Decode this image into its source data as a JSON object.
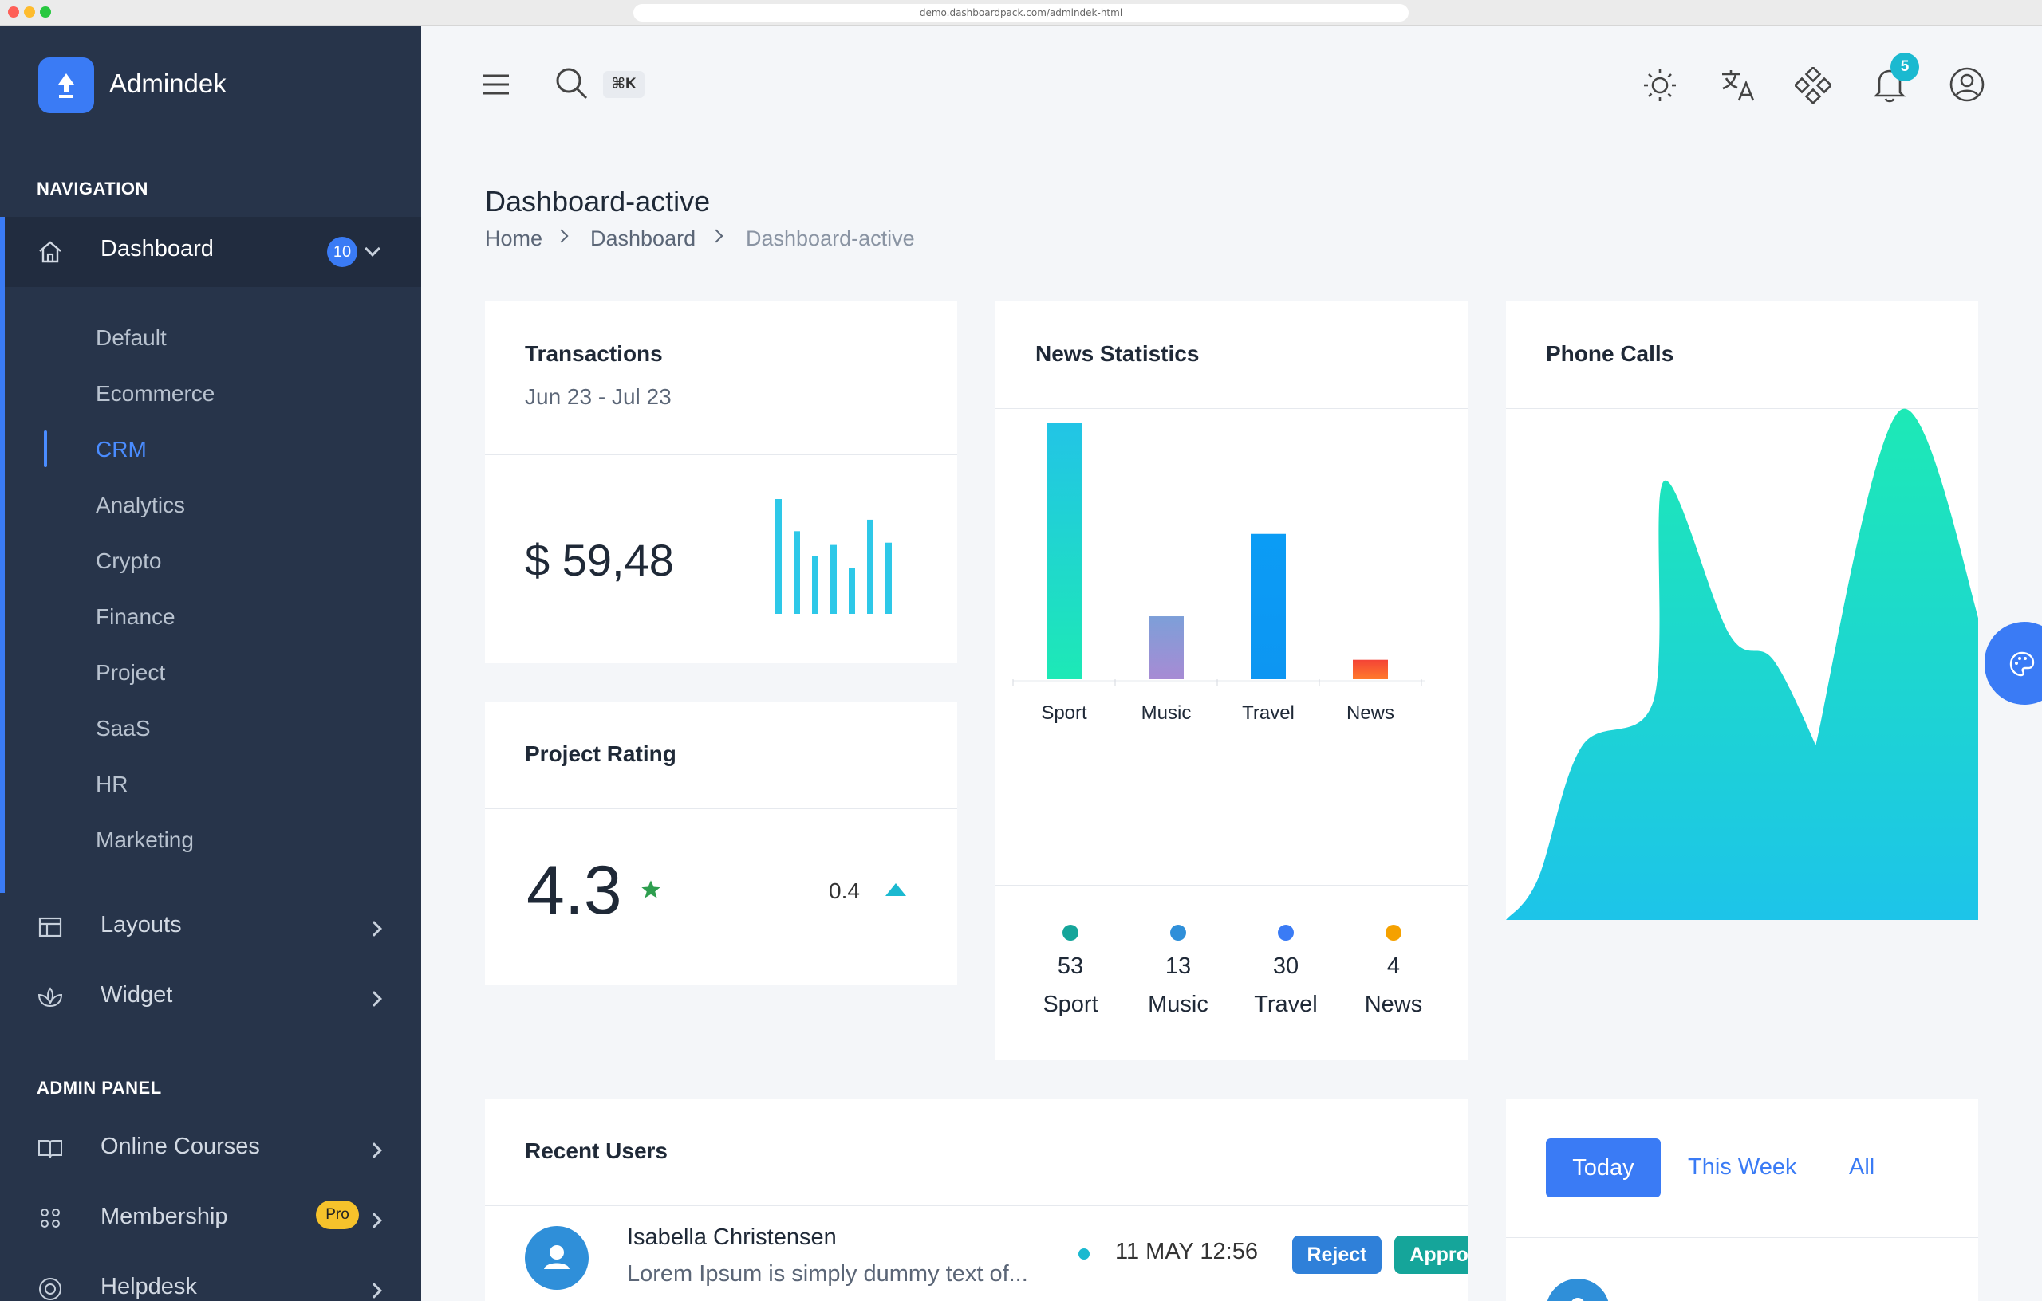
{
  "browser": {
    "url": "demo.dashboardpack.com/admindek-html"
  },
  "sidebar": {
    "brand": "Admindek",
    "nav_title": "NAVIGATION",
    "dashboard": {
      "label": "Dashboard",
      "badge": "10"
    },
    "sub_items": [
      "Default",
      "Ecommerce",
      "CRM",
      "Analytics",
      "Crypto",
      "Finance",
      "Project",
      "SaaS",
      "HR",
      "Marketing"
    ],
    "active_sub": "CRM",
    "layouts": "Layouts",
    "widget": "Widget",
    "admin_title": "ADMIN PANEL",
    "online_courses": "Online Courses",
    "membership": {
      "label": "Membership",
      "badge": "Pro"
    },
    "helpdesk": "Helpdesk"
  },
  "header": {
    "kbd": "⌘K",
    "notif_count": "5"
  },
  "page": {
    "title": "Dashboard-active",
    "breadcrumb": [
      "Home",
      "Dashboard",
      "Dashboard-active"
    ]
  },
  "transactions": {
    "title": "Transactions",
    "range": "Jun 23 - Jul 23",
    "amount": "$ 59,48",
    "spark_color": "#2ec8e8",
    "spark": [
      1.0,
      0.72,
      0.5,
      0.6,
      0.4,
      0.82,
      0.62
    ]
  },
  "rating": {
    "title": "Project Rating",
    "value": "4.3",
    "delta": "0.4"
  },
  "news": {
    "title": "News Statistics",
    "chart_data": {
      "type": "bar",
      "categories": [
        "Sport",
        "Music",
        "Travel",
        "News"
      ],
      "values": [
        53,
        13,
        30,
        4
      ],
      "colors": [
        "#1de9b6",
        "#9b8ed6",
        "#0d9cf5",
        "#f44336"
      ]
    },
    "stats": [
      {
        "value": "53",
        "label": "Sport",
        "color": "#15a59a"
      },
      {
        "value": "13",
        "label": "Music",
        "color": "#2f8fd9"
      },
      {
        "value": "30",
        "label": "Travel",
        "color": "#3a7bf5"
      },
      {
        "value": "4",
        "label": "News",
        "color": "#f5a100"
      }
    ]
  },
  "phone": {
    "title": "Phone Calls",
    "chart_data": {
      "type": "area",
      "values": [
        0,
        8,
        34,
        43,
        86,
        56,
        51,
        33,
        34,
        100,
        55
      ]
    }
  },
  "recent_users": {
    "title": "Recent Users",
    "rows": [
      {
        "name": "Isabella Christensen",
        "text": "Lorem Ipsum is simply dummy text of...",
        "time": "11 MAY 12:56",
        "reject": "Reject",
        "approve": "Approve"
      }
    ]
  },
  "tabs": {
    "today": "Today",
    "week": "This Week",
    "all": "All"
  }
}
